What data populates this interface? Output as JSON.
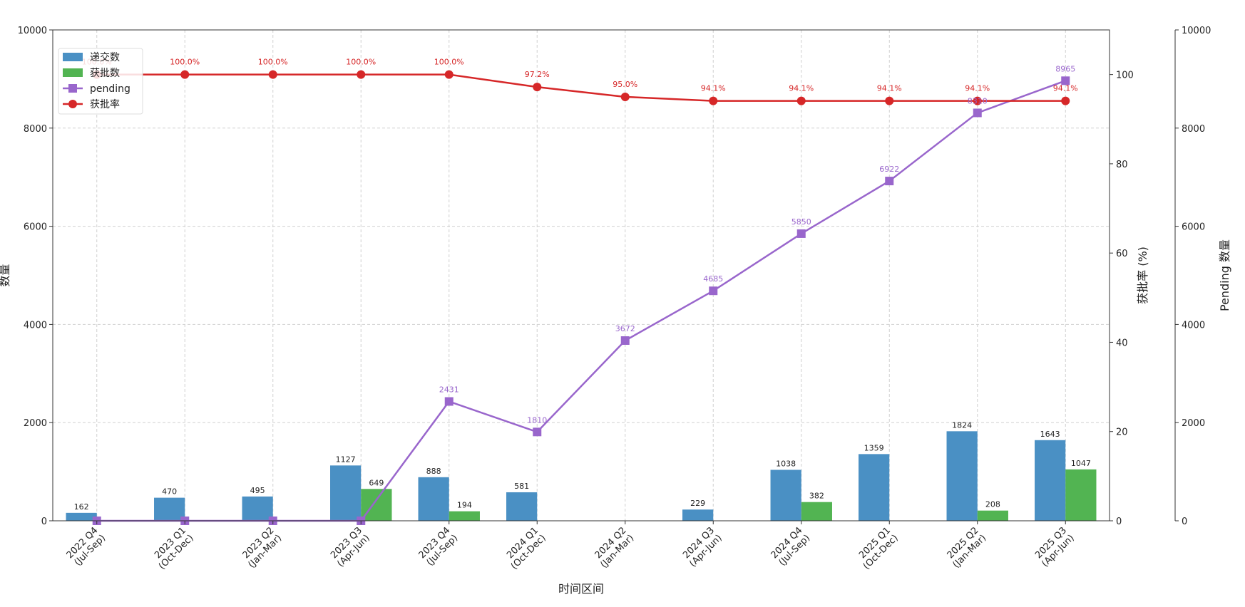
{
  "chart_data": {
    "type": "bar",
    "categories": [
      "2022 Q4\n(Jul-Sep)",
      "2023 Q1\n(Oct-Dec)",
      "2023 Q2\n(Jan-Mar)",
      "2023 Q3\n(Apr-Jun)",
      "2023 Q4\n(Jul-Sep)",
      "2024 Q1\n(Oct-Dec)",
      "2024 Q2\n(Jan-Mar)",
      "2024 Q3\n(Apr-Jun)",
      "2024 Q4\n(Jul-Sep)",
      "2025 Q1\n(Oct-Dec)",
      "2025 Q2\n(Jan-Mar)",
      "2025 Q3\n(Apr-Jun)"
    ],
    "xlabel": "时间区间",
    "ylabel": "数量",
    "ylabel_right": "获批率 (%)",
    "ylabel_right2": "Pending 数量",
    "ylim": [
      0,
      10000
    ],
    "ylim_right": [
      0,
      110
    ],
    "ylim_right2": [
      0,
      10000
    ],
    "yticks": [
      0,
      2000,
      4000,
      6000,
      8000,
      10000
    ],
    "yticks_right": [
      0,
      20,
      40,
      60,
      80,
      100
    ],
    "yticks_right2": [
      0,
      2000,
      4000,
      6000,
      8000,
      10000
    ],
    "grid": true,
    "legend": "top-left",
    "series": [
      {
        "name": "递交数",
        "kind": "bar",
        "color": "#4a90c4",
        "values": [
          162,
          470,
          495,
          1127,
          888,
          581,
          0,
          229,
          1038,
          1359,
          1824,
          1643
        ],
        "labels": [
          "162",
          "470",
          "495",
          "1127",
          "888",
          "581",
          "",
          "229",
          "1038",
          "1359",
          "1824",
          "1643"
        ]
      },
      {
        "name": "获批数",
        "kind": "bar",
        "color": "#52b452",
        "values": [
          0,
          0,
          0,
          649,
          194,
          0,
          0,
          0,
          382,
          0,
          208,
          1047
        ],
        "labels": [
          "",
          "",
          "",
          "649",
          "194",
          "",
          "",
          "",
          "382",
          "",
          "208",
          "1047"
        ]
      },
      {
        "name": "pending",
        "kind": "line",
        "marker": "square",
        "color": "#9966cc",
        "axis": "right2",
        "values": [
          0,
          0,
          0,
          0,
          2431,
          1810,
          3672,
          4685,
          5850,
          6922,
          8310,
          8965
        ],
        "labels": [
          "",
          "",
          "",
          "",
          "2431",
          "1810",
          "3672",
          "4685",
          "5850",
          "6922",
          "8310",
          "8965"
        ]
      },
      {
        "name": "获批率",
        "kind": "line",
        "marker": "circle",
        "color": "#d62728",
        "axis": "right",
        "values": [
          100,
          100,
          100,
          100,
          100,
          97.2,
          95.0,
          94.1,
          94.1,
          94.1,
          94.1,
          94.1
        ],
        "labels": [
          "100.0%",
          "100.0%",
          "100.0%",
          "100.0%",
          "100.0%",
          "97.2%",
          "95.0%",
          "94.1%",
          "94.1%",
          "94.1%",
          "94.1%",
          "94.1%"
        ]
      }
    ]
  }
}
